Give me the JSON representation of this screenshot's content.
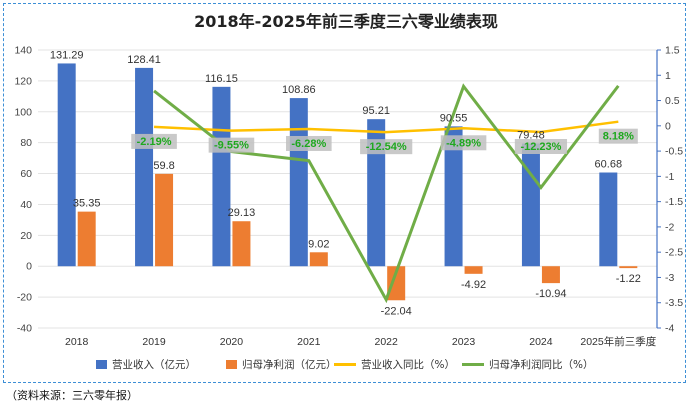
{
  "source_note": "（资料来源：三六零年报）",
  "chart_data": {
    "type": "bar",
    "title": "2018年-2025年前三季度三六零业绩表现",
    "categories": [
      "2018",
      "2019",
      "2020",
      "2021",
      "2022",
      "2023",
      "2024",
      "2025年前三季度"
    ],
    "y_left": {
      "ylim": [
        -40,
        140
      ],
      "ticks": [
        "140",
        "120",
        "100",
        "80",
        "60",
        "40",
        "20",
        "0",
        "-20",
        "-40"
      ]
    },
    "y_right": {
      "ylim": [
        -4,
        1.5
      ],
      "ticks": [
        "1.5",
        "1",
        "0.5",
        "0",
        "-0.5",
        "-1",
        "-1.5",
        "-2",
        "-2.5",
        "-3",
        "-3.5",
        "-4"
      ]
    },
    "series": [
      {
        "name": "营业收入（亿元）",
        "kind": "bar",
        "axis": "left",
        "color": "#4472c4",
        "values": [
          131.29,
          128.41,
          116.15,
          108.86,
          95.21,
          90.55,
          79.48,
          60.68
        ],
        "labels": [
          "131.29",
          "128.41",
          "116.15",
          "108.86",
          "95.21",
          "90.55",
          "79.48",
          "60.68"
        ]
      },
      {
        "name": "归母净利润（亿元）",
        "kind": "bar",
        "axis": "left",
        "color": "#ed7d31",
        "values": [
          35.35,
          59.8,
          29.13,
          9.02,
          -22.04,
          -4.92,
          -10.94,
          -1.22
        ],
        "labels": [
          "35.35",
          "59.8",
          "29.13",
          "9.02",
          "-22.04",
          "-4.92",
          "-10.94",
          "-1.22"
        ]
      },
      {
        "name": "营业收入同比（%）",
        "kind": "line",
        "axis": "right",
        "color": "#ffc000",
        "values": [
          null,
          -0.0219,
          -0.0955,
          -0.0628,
          -0.1254,
          -0.0489,
          -0.1223,
          0.0818
        ],
        "labels": [
          "",
          "-2.19%",
          "-9.55%",
          "-6.28%",
          "-12.54%",
          "-4.89%",
          "-12.23%",
          "8.18%"
        ]
      },
      {
        "name": "归母净利润同比（%）",
        "kind": "line",
        "axis": "right",
        "color": "#70ad47",
        "values": [
          null,
          0.69,
          -0.51,
          -0.69,
          -3.44,
          0.78,
          -1.22,
          0.79
        ],
        "labels": []
      }
    ]
  }
}
